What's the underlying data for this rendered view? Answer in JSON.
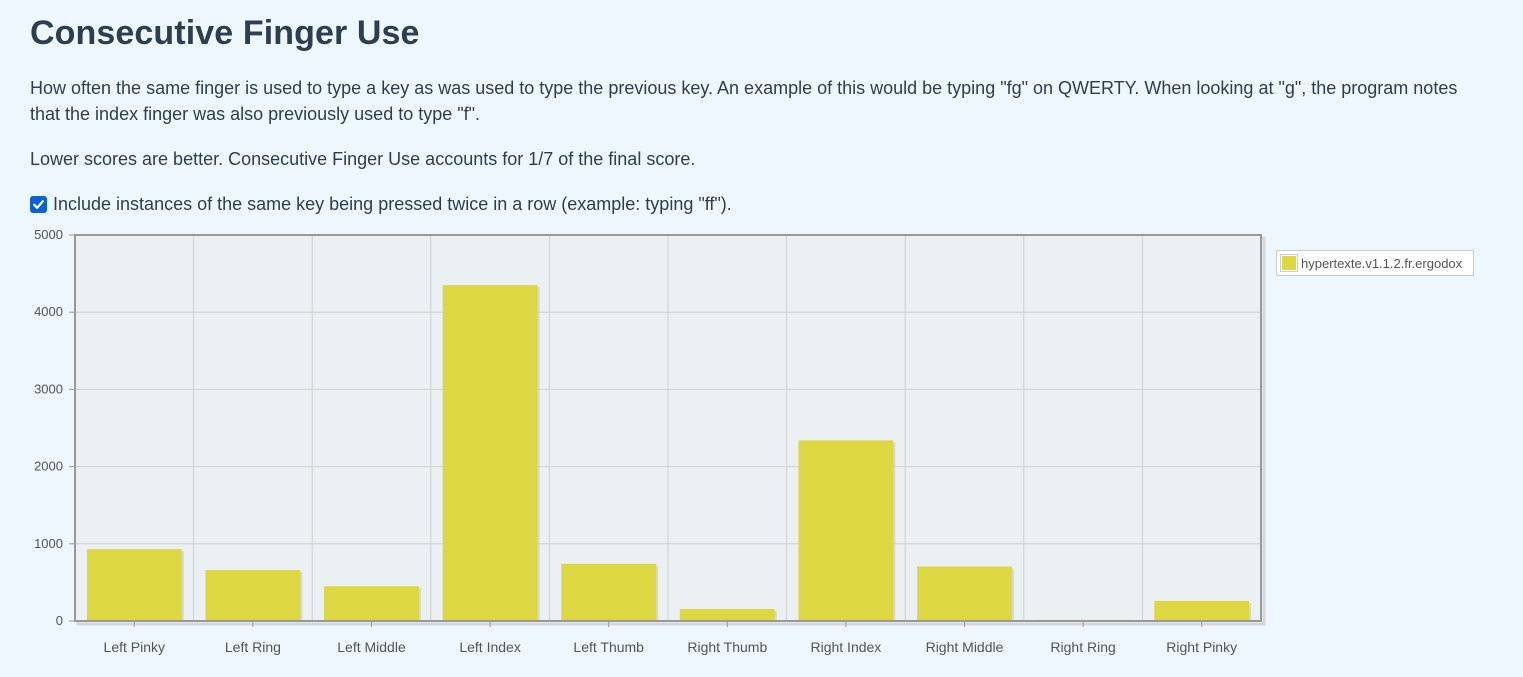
{
  "page": {
    "title": "Consecutive Finger Use",
    "description": "How often the same finger is used to type a key as was used to type the previous key. An example of this would be typing \"fg\" on QWERTY. When looking at \"g\", the program notes that the index finger was also previously used to type \"f\".",
    "note": "Lower scores are better. Consecutive Finger Use accounts for 1/7 of the final score.",
    "checkbox": {
      "label": "Include instances of the same key being pressed twice in a row (example: typing \"ff\").",
      "checked": true,
      "icon": "checkmark-icon"
    }
  },
  "colors": {
    "bar": "#ddd742",
    "plot_background": "#ebf0f2",
    "page_background": "#eef7fe",
    "checkbox": "#0b62d6"
  },
  "chart_data": {
    "type": "bar",
    "title": "",
    "xlabel": "",
    "ylabel": "",
    "categories": [
      "Left Pinky",
      "Left Ring",
      "Left Middle",
      "Left Index",
      "Left Thumb",
      "Right Thumb",
      "Right Index",
      "Right Middle",
      "Right Ring",
      "Right Pinky"
    ],
    "series": [
      {
        "name": "hypertexte.v1.1.2.fr.ergodox",
        "values": [
          930,
          660,
          450,
          4350,
          740,
          155,
          2340,
          705,
          15,
          260
        ]
      }
    ],
    "ylim": [
      0,
      5000
    ],
    "yticks": [
      0,
      1000,
      2000,
      3000,
      4000,
      5000
    ],
    "grid": true,
    "legend_position": "right"
  }
}
